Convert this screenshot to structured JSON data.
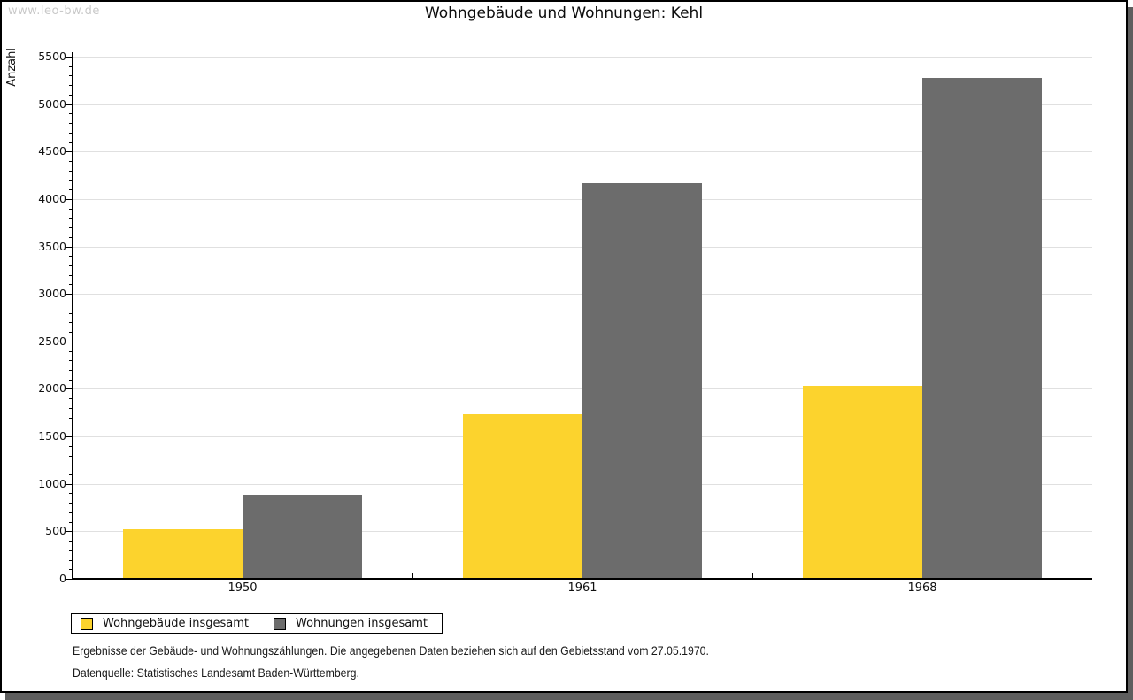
{
  "watermark": "www.leo-bw.de",
  "title": "Wohngebäude und Wohnungen: Kehl",
  "chart_data": {
    "type": "bar",
    "title": "Wohngebäude und Wohnungen: Kehl",
    "xlabel": "",
    "ylabel": "Anzahl",
    "categories": [
      "1950",
      "1961",
      "1968"
    ],
    "series": [
      {
        "name": "Wohngebäude insgesamt",
        "color": "#fcd32d",
        "values": [
          520,
          1730,
          2030
        ]
      },
      {
        "name": "Wohnungen insgesamt",
        "color": "#6c6c6c",
        "values": [
          890,
          4170,
          5280
        ]
      }
    ],
    "ylim": [
      0,
      5500
    ],
    "ytick_step": 500,
    "y_minor_tick_step": 100,
    "grid": true,
    "legend_position": "bottom-left"
  },
  "footnotes": [
    "Ergebnisse der Gebäude- und Wohnungszählungen. Die angegebenen Daten beziehen sich auf den Gebietsstand vom 27.05.1970.",
    "Datenquelle: Statistisches Landesamt Baden-Württemberg."
  ],
  "colors": {
    "gridline": "#e0e0e0",
    "axis": "#000000",
    "watermark": "#c9c9c9",
    "frame_shadow": "#5e5e5e"
  }
}
